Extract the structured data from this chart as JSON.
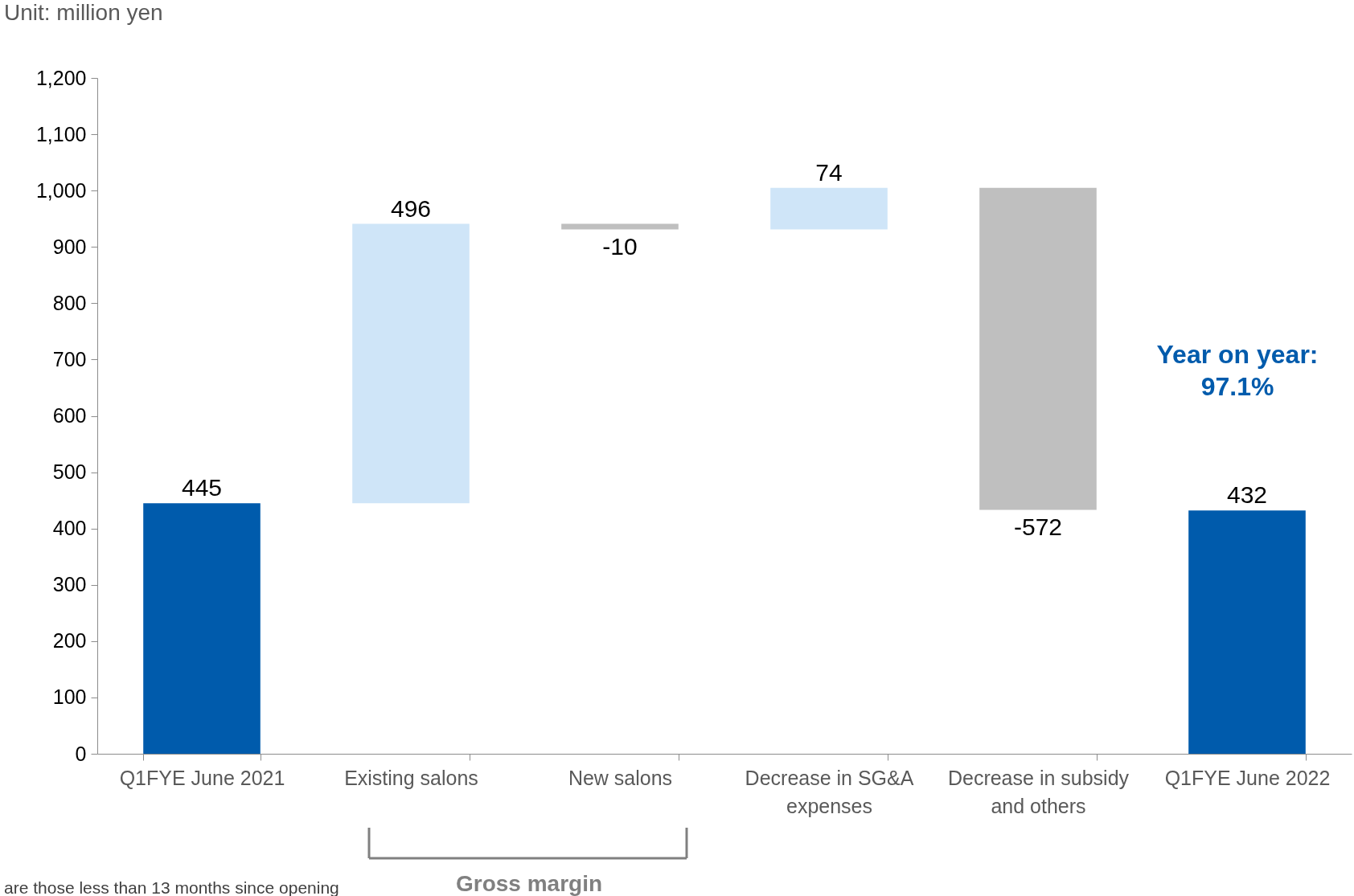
{
  "chart_data": {
    "type": "bar",
    "categories": [
      "Q1FYE June 2021",
      "Existing salons",
      "New salons",
      "Decrease in SG&A\nexpenses",
      "Decrease in subsidy\nand others",
      "Q1FYE June 2022"
    ],
    "values": [
      445,
      496,
      -10,
      74,
      -572,
      432
    ],
    "base": [
      0,
      445,
      941,
      931,
      1005,
      0
    ],
    "colors": [
      "#005bac",
      "#cfe5f8",
      "#bfbfbf",
      "#cfe5f8",
      "#bfbfbf",
      "#005bac"
    ],
    "ylim": [
      0,
      1200
    ],
    "yticks": [
      0,
      100,
      200,
      300,
      400,
      500,
      600,
      700,
      800,
      900,
      {
        "value": 1000,
        "label": "1,000"
      },
      {
        "value": 1100,
        "label": "1,100"
      },
      {
        "value": 1200,
        "label": "1,200"
      }
    ],
    "data_labels": true,
    "grid": false,
    "annotations": [
      "Unit: million yen",
      "Year on year:\n97.1%",
      "Gross margin",
      "are those less than 13 months since opening"
    ]
  }
}
